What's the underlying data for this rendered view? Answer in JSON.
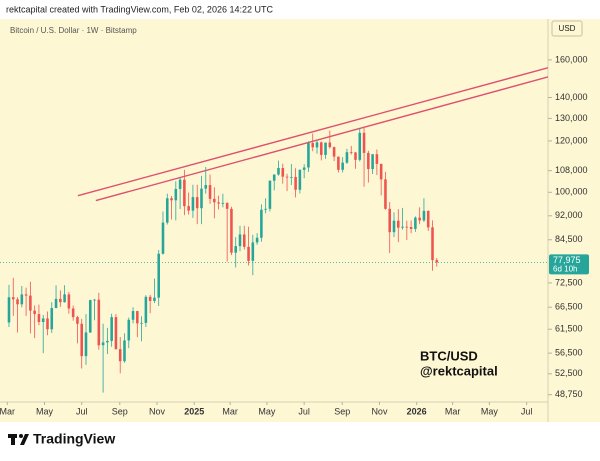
{
  "chart_data": {
    "type": "candlestick",
    "header": "rektcapital created with TradingView.com, Feb 02, 2026 14:22 UTC",
    "title": "Bitcoin / U.S. Dollar · 1W · Bitstamp",
    "currency": "USD",
    "watermark": [
      "BTC/USD",
      "@rektcapital"
    ],
    "logo": "TradingView",
    "log_scale": true,
    "grid": false,
    "up_color": "#26a69a",
    "down_color": "#ef5350",
    "categories": [
      null,
      null,
      null,
      null,
      null,
      null,
      null,
      null,
      null,
      null,
      null,
      null,
      null,
      null,
      null,
      null,
      null,
      null,
      null,
      null,
      null,
      null,
      null,
      null,
      null,
      null,
      null,
      null,
      null,
      null,
      null,
      null,
      null,
      null,
      null,
      null,
      null,
      null,
      null,
      null,
      null,
      null,
      null,
      null,
      null,
      null,
      null,
      null,
      null,
      null,
      null,
      null,
      null,
      null,
      null,
      null,
      null,
      null,
      null,
      null,
      null,
      null,
      null,
      null,
      null,
      null,
      null,
      null,
      null,
      null,
      null,
      null,
      null,
      null,
      null,
      null,
      null,
      null,
      null,
      null,
      null,
      null,
      null,
      null,
      null,
      null,
      null,
      null,
      null,
      null,
      null,
      null,
      null,
      null,
      null,
      null,
      null,
      null,
      null,
      null,
      null
    ],
    "open": [
      63000,
      68900,
      68400,
      67200,
      69600,
      69300,
      65700,
      64900,
      63100,
      63900,
      61500,
      66300,
      68500,
      67700,
      69600,
      66200,
      64200,
      62700,
      55900,
      60800,
      68200,
      68300,
      58100,
      58700,
      59000,
      64200,
      57300,
      54900,
      59100,
      63600,
      65600,
      62800,
      62900,
      69000,
      68000,
      68800,
      80400,
      89800,
      97900,
      97200,
      101200,
      104600,
      95200,
      93700,
      98300,
      94500,
      101300,
      102600,
      97700,
      96500,
      96100,
      96300,
      94300,
      80700,
      82600,
      86100,
      82400,
      78400,
      83700,
      85100,
      94000,
      94300,
      104200,
      106500,
      109000,
      105700,
      105500,
      105600,
      100900,
      108300,
      109200,
      119100,
      117300,
      119400,
      114200,
      119300,
      117400,
      113500,
      108300,
      111100,
      115300,
      115200,
      112200,
      123500,
      115000,
      108600,
      114500,
      110600,
      104700,
      94300,
      86800,
      90400,
      88200,
      88500,
      88400,
      87800,
      91400,
      90500,
      93600,
      88300,
      78600
    ],
    "high": [
      72000,
      73800,
      68900,
      71700,
      71300,
      72800,
      66900,
      67100,
      64700,
      65500,
      67700,
      71900,
      70600,
      71900,
      70200,
      66900,
      64500,
      63800,
      64900,
      68300,
      68500,
      70000,
      62700,
      61800,
      65000,
      64900,
      59800,
      60600,
      64100,
      66500,
      65600,
      64400,
      69400,
      69500,
      73600,
      81500,
      93400,
      99500,
      98700,
      104000,
      105300,
      108300,
      99900,
      102700,
      102700,
      106000,
      109400,
      106500,
      101800,
      98800,
      99500,
      96500,
      95000,
      85300,
      88800,
      88800,
      88500,
      86000,
      86500,
      95800,
      97900,
      104300,
      106600,
      111900,
      110700,
      106800,
      110600,
      108900,
      108500,
      110500,
      119800,
      123200,
      120200,
      119800,
      119300,
      124500,
      117600,
      113500,
      113300,
      116700,
      117900,
      115400,
      125500,
      126200,
      115900,
      114000,
      116400,
      110700,
      107500,
      96600,
      93100,
      94200,
      94600,
      90400,
      90500,
      91800,
      94800,
      97900,
      93800,
      90500,
      79200
    ],
    "low": [
      62000,
      64500,
      60800,
      66500,
      64500,
      60600,
      59600,
      62400,
      56500,
      60200,
      60700,
      66300,
      66600,
      67600,
      65000,
      63400,
      58500,
      53500,
      54200,
      60700,
      63500,
      57200,
      49100,
      56300,
      57800,
      57200,
      52600,
      54600,
      57500,
      62800,
      59800,
      58900,
      62000,
      65100,
      67500,
      66800,
      80200,
      89200,
      90800,
      90500,
      94200,
      92200,
      92400,
      91300,
      89300,
      89300,
      99500,
      96000,
      91200,
      94100,
      94800,
      78200,
      80000,
      76600,
      81100,
      81600,
      77100,
      74500,
      83000,
      83900,
      92800,
      93400,
      100700,
      106100,
      103100,
      100400,
      102600,
      98200,
      99600,
      105100,
      107500,
      115700,
      114700,
      112000,
      112600,
      116800,
      111700,
      107300,
      107300,
      110600,
      114300,
      108700,
      111600,
      102000,
      103500,
      106700,
      106300,
      98900,
      94000,
      80600,
      85300,
      83800,
      87600,
      84400,
      86500,
      86900,
      89300,
      90000,
      87200,
      75700,
      76800
    ],
    "close": [
      68900,
      68400,
      67200,
      69600,
      69300,
      65700,
      64900,
      63100,
      63900,
      61500,
      66300,
      68500,
      67700,
      69600,
      66200,
      64200,
      62700,
      55900,
      60800,
      68200,
      68300,
      58100,
      58700,
      59000,
      64200,
      57300,
      54900,
      59100,
      63600,
      65600,
      62800,
      62900,
      69000,
      68000,
      68800,
      80400,
      89800,
      97900,
      97200,
      101200,
      104600,
      95200,
      93700,
      98300,
      94500,
      101300,
      102600,
      97700,
      96500,
      96100,
      96300,
      94300,
      80700,
      82600,
      86100,
      82400,
      78400,
      83700,
      85100,
      94000,
      94300,
      104200,
      106500,
      109000,
      105700,
      105500,
      105600,
      100900,
      108300,
      109200,
      119100,
      117300,
      119400,
      114200,
      119300,
      117400,
      113500,
      108300,
      111100,
      115300,
      115200,
      112200,
      123500,
      115000,
      108600,
      114500,
      110600,
      104700,
      94300,
      86800,
      90400,
      88200,
      88500,
      88400,
      87800,
      91400,
      90500,
      93600,
      88300,
      78600,
      77975
    ],
    "xlim": [
      -2.1,
      126
    ],
    "xticks": [
      {
        "value": -0.4,
        "label": "Mar"
      },
      {
        "value": 8.3,
        "label": "May"
      },
      {
        "value": 17,
        "label": "Jul"
      },
      {
        "value": 25.9,
        "label": "Sep"
      },
      {
        "value": 34.6,
        "label": "Nov"
      },
      {
        "value": 43.3,
        "label": "2025"
      },
      {
        "value": 51.7,
        "label": "Mar"
      },
      {
        "value": 60.3,
        "label": "May"
      },
      {
        "value": 69,
        "label": "Jul"
      },
      {
        "value": 77.9,
        "label": "Sep"
      },
      {
        "value": 86.6,
        "label": "Nov"
      },
      {
        "value": 95.3,
        "label": "2026"
      },
      {
        "value": 103.7,
        "label": "Mar"
      },
      {
        "value": 112.3,
        "label": "May"
      },
      {
        "value": 121,
        "label": "Jul"
      }
    ],
    "ylim": [
      47500,
      185000
    ],
    "yticks": [
      {
        "value": 48750,
        "label": "48,750"
      },
      {
        "value": 52500,
        "label": "52,500"
      },
      {
        "value": 56500,
        "label": "56,500"
      },
      {
        "value": 61500,
        "label": "61,500"
      },
      {
        "value": 66500,
        "label": "66,500"
      },
      {
        "value": 72500,
        "label": "72,500"
      },
      {
        "value": 84500,
        "label": "84,500"
      },
      {
        "value": 92000,
        "label": "92,000"
      },
      {
        "value": 100000,
        "label": "100,000"
      },
      {
        "value": 108000,
        "label": "108,000"
      },
      {
        "value": 120000,
        "label": "120,000"
      },
      {
        "value": 130000,
        "label": "130,000"
      },
      {
        "value": 140000,
        "label": "140,000"
      },
      {
        "value": 160000,
        "label": "160,000"
      }
    ],
    "trendline_color": "#e0506e",
    "trendlines": [
      {
        "x": [
          16.1,
          126
        ],
        "y": [
          98800,
          155600
        ]
      },
      {
        "x": [
          20.3,
          126
        ],
        "y": [
          97100,
          150600
        ]
      }
    ],
    "last_price": {
      "value": 77975,
      "label": "77,975"
    },
    "countdown": "6d 10h"
  }
}
